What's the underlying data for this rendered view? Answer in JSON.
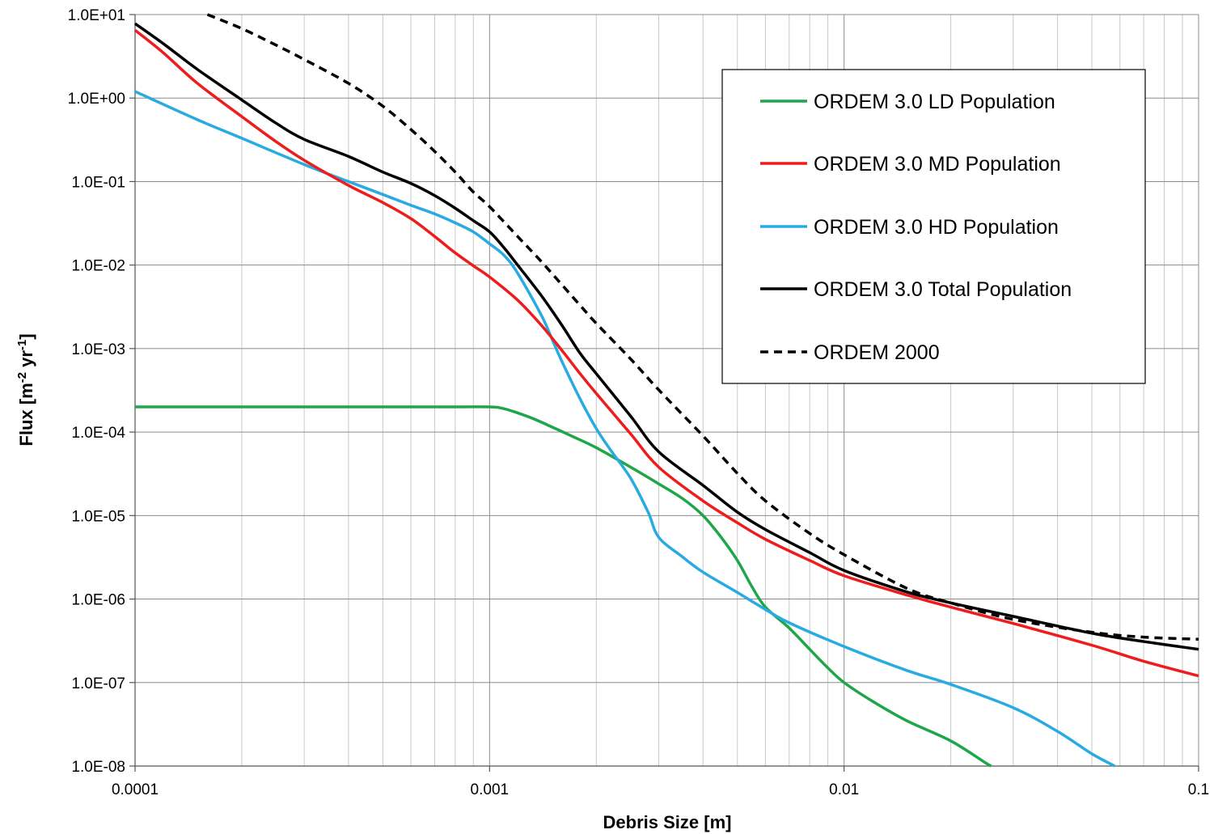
{
  "chart_data": {
    "type": "line",
    "title": "",
    "xlabel": "Debris Size [m]",
    "ylabel": {
      "main": "Flux [m",
      "exp1": "-2",
      "mid": " yr",
      "exp2": "-1",
      "end": "]"
    },
    "x_scale": "log",
    "y_scale": "log",
    "xlim": [
      0.0001,
      0.1
    ],
    "ylim": [
      1e-08,
      10
    ],
    "grid": true,
    "legend_position": "top-right",
    "x_ticks": [
      {
        "value": 0.0001,
        "label": "0.0001"
      },
      {
        "value": 0.001,
        "label": "0.001"
      },
      {
        "value": 0.01,
        "label": "0.01"
      },
      {
        "value": 0.1,
        "label": "0.1"
      }
    ],
    "y_ticks": [
      {
        "value": 10,
        "label": "1.0E+01"
      },
      {
        "value": 1,
        "label": "1.0E+00"
      },
      {
        "value": 0.1,
        "label": "1.0E-01"
      },
      {
        "value": 0.01,
        "label": "1.0E-02"
      },
      {
        "value": 0.001,
        "label": "1.0E-03"
      },
      {
        "value": 0.0001,
        "label": "1.0E-04"
      },
      {
        "value": 1e-05,
        "label": "1.0E-05"
      },
      {
        "value": 1e-06,
        "label": "1.0E-06"
      },
      {
        "value": 1e-07,
        "label": "1.0E-07"
      },
      {
        "value": 1e-08,
        "label": "1.0E-08"
      }
    ],
    "series": [
      {
        "name": "ORDEM 3.0 LD Population",
        "color": "#1fa64a",
        "dash": "solid",
        "points": [
          [
            0.0001,
            0.0002
          ],
          [
            0.00025,
            0.0002
          ],
          [
            0.0005,
            0.0002
          ],
          [
            0.0008,
            0.0002
          ],
          [
            0.001,
            0.0002
          ],
          [
            0.0011,
            0.00019
          ],
          [
            0.0013,
            0.00015
          ],
          [
            0.0015,
            0.000115
          ],
          [
            0.0017,
            9e-05
          ],
          [
            0.002,
            6.5e-05
          ],
          [
            0.0025,
            3.8e-05
          ],
          [
            0.003,
            2.4e-05
          ],
          [
            0.0035,
            1.6e-05
          ],
          [
            0.004,
            1e-05
          ],
          [
            0.0045,
            5.5e-06
          ],
          [
            0.005,
            2.9e-06
          ],
          [
            0.0055,
            1.4e-06
          ],
          [
            0.006,
            8e-07
          ],
          [
            0.007,
            4.5e-07
          ],
          [
            0.008,
            2.5e-07
          ],
          [
            0.009,
            1.5e-07
          ],
          [
            0.01,
            1e-07
          ],
          [
            0.012,
            6e-08
          ],
          [
            0.015,
            3.5e-08
          ],
          [
            0.02,
            2e-08
          ],
          [
            0.025,
            1.1e-08
          ],
          [
            0.026,
            1e-08
          ]
        ]
      },
      {
        "name": "ORDEM 3.0 MD Population",
        "color": "#ee1c1c",
        "dash": "solid",
        "points": [
          [
            0.0001,
            6.5
          ],
          [
            0.00012,
            3.5
          ],
          [
            0.00015,
            1.5
          ],
          [
            0.0002,
            0.6
          ],
          [
            0.00025,
            0.3
          ],
          [
            0.0003,
            0.18
          ],
          [
            0.0004,
            0.09
          ],
          [
            0.0005,
            0.056
          ],
          [
            0.0006,
            0.036
          ],
          [
            0.0007,
            0.022
          ],
          [
            0.0008,
            0.014
          ],
          [
            0.0009,
            0.0098
          ],
          [
            0.001,
            0.0072
          ],
          [
            0.0012,
            0.0038
          ],
          [
            0.0014,
            0.0019
          ],
          [
            0.0016,
            0.00095
          ],
          [
            0.0018,
            0.0005
          ],
          [
            0.002,
            0.00029
          ],
          [
            0.0025,
            9.5e-05
          ],
          [
            0.003,
            3.8e-05
          ],
          [
            0.004,
            1.5e-05
          ],
          [
            0.005,
            8.2e-06
          ],
          [
            0.006,
            5.2e-06
          ],
          [
            0.008,
            2.9e-06
          ],
          [
            0.01,
            1.9e-06
          ],
          [
            0.015,
            1.12e-06
          ],
          [
            0.02,
            8e-07
          ],
          [
            0.03,
            5.1e-07
          ],
          [
            0.05,
            2.8e-07
          ],
          [
            0.07,
            1.8e-07
          ],
          [
            0.1,
            1.2e-07
          ]
        ]
      },
      {
        "name": "ORDEM 3.0 HD Population",
        "color": "#29abe2",
        "dash": "solid",
        "points": [
          [
            0.0001,
            1.2
          ],
          [
            0.00015,
            0.55
          ],
          [
            0.0002,
            0.33
          ],
          [
            0.0003,
            0.16
          ],
          [
            0.0004,
            0.1
          ],
          [
            0.0005,
            0.07
          ],
          [
            0.0006,
            0.052
          ],
          [
            0.0007,
            0.041
          ],
          [
            0.0008,
            0.032
          ],
          [
            0.0009,
            0.025
          ],
          [
            0.001,
            0.018
          ],
          [
            0.0011,
            0.013
          ],
          [
            0.0012,
            0.008
          ],
          [
            0.0014,
            0.0025
          ],
          [
            0.0015,
            0.0013
          ],
          [
            0.0016,
            0.0007
          ],
          [
            0.0018,
            0.00025
          ],
          [
            0.002,
            0.00011
          ],
          [
            0.0022,
            6e-05
          ],
          [
            0.0025,
            2.8e-05
          ],
          [
            0.0028,
            1.1e-05
          ],
          [
            0.003,
            5.5e-06
          ],
          [
            0.0035,
            3.2e-06
          ],
          [
            0.004,
            2.1e-06
          ],
          [
            0.005,
            1.2e-06
          ],
          [
            0.006,
            7.5e-07
          ],
          [
            0.007,
            5.2e-07
          ],
          [
            0.01,
            2.7e-07
          ],
          [
            0.015,
            1.4e-07
          ],
          [
            0.02,
            9.5e-08
          ],
          [
            0.03,
            5e-08
          ],
          [
            0.04,
            2.6e-08
          ],
          [
            0.05,
            1.4e-08
          ],
          [
            0.058,
            1e-08
          ]
        ]
      },
      {
        "name": "ORDEM 3.0 Total Population",
        "color": "#000000",
        "dash": "solid",
        "points": [
          [
            0.0001,
            7.8
          ],
          [
            0.00012,
            4.5
          ],
          [
            0.00015,
            2.2
          ],
          [
            0.0002,
            0.95
          ],
          [
            0.00025,
            0.5
          ],
          [
            0.0003,
            0.32
          ],
          [
            0.0004,
            0.2
          ],
          [
            0.0005,
            0.13
          ],
          [
            0.0006,
            0.095
          ],
          [
            0.0007,
            0.068
          ],
          [
            0.0008,
            0.048
          ],
          [
            0.0009,
            0.034
          ],
          [
            0.001,
            0.025
          ],
          [
            0.0011,
            0.016
          ],
          [
            0.0012,
            0.01
          ],
          [
            0.0014,
            0.0043
          ],
          [
            0.0016,
            0.0019
          ],
          [
            0.0018,
            0.00088
          ],
          [
            0.002,
            0.0005
          ],
          [
            0.0025,
            0.000155
          ],
          [
            0.003,
            5.8e-05
          ],
          [
            0.004,
            2.3e-05
          ],
          [
            0.005,
            1.1e-05
          ],
          [
            0.006,
            6.8e-06
          ],
          [
            0.008,
            3.6e-06
          ],
          [
            0.01,
            2.2e-06
          ],
          [
            0.015,
            1.22e-06
          ],
          [
            0.02,
            9e-07
          ],
          [
            0.03,
            6.2e-07
          ],
          [
            0.05,
            3.9e-07
          ],
          [
            0.07,
            3.1e-07
          ],
          [
            0.1,
            2.5e-07
          ]
        ]
      },
      {
        "name": "ORDEM 2000",
        "color": "#000000",
        "dash": "dashed",
        "points": [
          [
            0.00016,
            10
          ],
          [
            0.0002,
            6.8
          ],
          [
            0.00025,
            4.3
          ],
          [
            0.0003,
            2.9
          ],
          [
            0.0004,
            1.5
          ],
          [
            0.0005,
            0.8
          ],
          [
            0.0006,
            0.42
          ],
          [
            0.0007,
            0.23
          ],
          [
            0.0008,
            0.13
          ],
          [
            0.0009,
            0.075
          ],
          [
            0.001,
            0.05
          ],
          [
            0.0012,
            0.022
          ],
          [
            0.0014,
            0.011
          ],
          [
            0.0016,
            0.0058
          ],
          [
            0.0018,
            0.0033
          ],
          [
            0.002,
            0.002
          ],
          [
            0.0025,
            0.00075
          ],
          [
            0.003,
            0.00032
          ],
          [
            0.004,
            9e-05
          ],
          [
            0.005,
            3.2e-05
          ],
          [
            0.006,
            1.5e-05
          ],
          [
            0.008,
            6.1e-06
          ],
          [
            0.01,
            3.4e-06
          ],
          [
            0.015,
            1.35e-06
          ],
          [
            0.02,
            9e-07
          ],
          [
            0.03,
            5.7e-07
          ],
          [
            0.05,
            4e-07
          ],
          [
            0.07,
            3.5e-07
          ],
          [
            0.1,
            3.3e-07
          ]
        ]
      }
    ]
  }
}
